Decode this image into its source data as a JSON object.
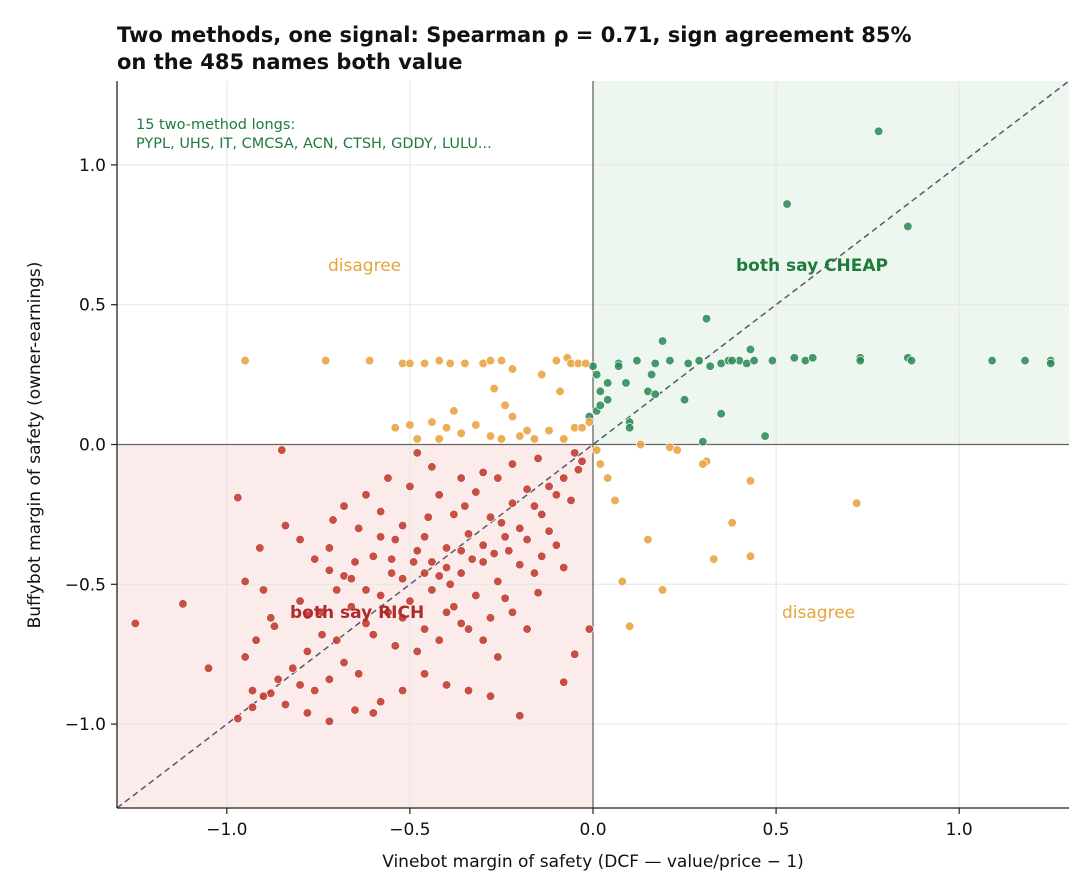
{
  "chart_data": {
    "type": "scatter",
    "title_lines": [
      "Two methods, one signal: Spearman ρ = 0.71, sign agreement 85%",
      "on the 485 names both value"
    ],
    "xlabel": "Vinebot margin of safety  (DCF — value/price − 1)",
    "ylabel": "Buffybot margin of safety  (owner-earnings)",
    "xlim": [
      -1.3,
      1.3
    ],
    "ylim": [
      -1.3,
      1.3
    ],
    "x_ticks": [
      -1.0,
      -0.5,
      0.0,
      0.5,
      1.0
    ],
    "x_tick_labels": [
      "−1.0",
      "−0.5",
      "0.0",
      "0.5",
      "1.0"
    ],
    "y_ticks": [
      -1.0,
      -0.5,
      0.0,
      0.5,
      1.0
    ],
    "y_tick_labels": [
      "−1.0",
      "−0.5",
      "0.0",
      "0.5",
      "1.0"
    ],
    "grid": true,
    "reference_line": "y = x (dashed)",
    "quadrant_labels": {
      "cheap": "both say CHEAP",
      "rich": "both say RICH",
      "disagree_top_left": "disagree",
      "disagree_bottom_right": "disagree"
    },
    "annotation": {
      "line1": "15 two-method longs:",
      "line2": "PYPL, UHS, IT, CMCSA, ACN, CTSH, GDDY, LULU..."
    },
    "colors": {
      "cheap": "#2e8b57",
      "rich": "#c0392b",
      "disagree": "#e8a33d",
      "cheap_region": "#edf7ef",
      "rich_region": "#fbebea",
      "cheap_label": "#1e7b3c",
      "rich_label": "#b02a2a",
      "annotation": "#1e7b3c",
      "reference_line": "#555b66"
    },
    "series": [
      {
        "category": "both say CHEAP",
        "points": [
          [
            0.78,
            1.12
          ],
          [
            0.53,
            0.86
          ],
          [
            0.86,
            0.78
          ],
          [
            0.31,
            0.45
          ],
          [
            0.19,
            0.37
          ],
          [
            0.43,
            0.34
          ],
          [
            0.0,
            0.28
          ],
          [
            0.07,
            0.29
          ],
          [
            0.07,
            0.28
          ],
          [
            0.12,
            0.3
          ],
          [
            0.17,
            0.29
          ],
          [
            0.21,
            0.3
          ],
          [
            0.26,
            0.29
          ],
          [
            0.29,
            0.3
          ],
          [
            0.32,
            0.28
          ],
          [
            0.35,
            0.29
          ],
          [
            0.37,
            0.3
          ],
          [
            0.4,
            0.3
          ],
          [
            0.42,
            0.29
          ],
          [
            0.44,
            0.3
          ],
          [
            0.49,
            0.3
          ],
          [
            0.55,
            0.31
          ],
          [
            0.58,
            0.3
          ],
          [
            0.6,
            0.31
          ],
          [
            0.73,
            0.31
          ],
          [
            0.73,
            0.3
          ],
          [
            0.86,
            0.31
          ],
          [
            0.87,
            0.3
          ],
          [
            1.09,
            0.3
          ],
          [
            1.18,
            0.3
          ],
          [
            1.25,
            0.3
          ],
          [
            1.25,
            0.29
          ],
          [
            0.01,
            0.25
          ],
          [
            0.04,
            0.22
          ],
          [
            0.09,
            0.22
          ],
          [
            0.02,
            0.19
          ],
          [
            0.15,
            0.19
          ],
          [
            0.17,
            0.18
          ],
          [
            0.04,
            0.16
          ],
          [
            0.25,
            0.16
          ],
          [
            0.01,
            0.12
          ],
          [
            -0.01,
            0.1
          ],
          [
            0.35,
            0.11
          ],
          [
            0.1,
            0.08
          ],
          [
            0.1,
            0.06
          ],
          [
            0.3,
            0.01
          ],
          [
            0.47,
            0.03
          ],
          [
            0.16,
            0.25
          ],
          [
            0.02,
            0.14
          ],
          [
            0.38,
            0.3
          ]
        ]
      },
      {
        "category": "disagree",
        "points": [
          [
            -0.95,
            0.3
          ],
          [
            -0.73,
            0.3
          ],
          [
            -0.61,
            0.3
          ],
          [
            -0.52,
            0.29
          ],
          [
            -0.5,
            0.29
          ],
          [
            -0.46,
            0.29
          ],
          [
            -0.42,
            0.3
          ],
          [
            -0.39,
            0.29
          ],
          [
            -0.35,
            0.29
          ],
          [
            -0.3,
            0.29
          ],
          [
            -0.28,
            0.3
          ],
          [
            -0.25,
            0.3
          ],
          [
            -0.22,
            0.27
          ],
          [
            -0.14,
            0.25
          ],
          [
            -0.1,
            0.3
          ],
          [
            -0.07,
            0.31
          ],
          [
            -0.06,
            0.29
          ],
          [
            -0.04,
            0.29
          ],
          [
            -0.02,
            0.29
          ],
          [
            -0.27,
            0.2
          ],
          [
            -0.09,
            0.19
          ],
          [
            -0.38,
            0.12
          ],
          [
            -0.24,
            0.14
          ],
          [
            -0.22,
            0.1
          ],
          [
            -0.5,
            0.07
          ],
          [
            -0.54,
            0.06
          ],
          [
            -0.44,
            0.08
          ],
          [
            -0.4,
            0.06
          ],
          [
            -0.36,
            0.04
          ],
          [
            -0.42,
            0.02
          ],
          [
            -0.48,
            0.02
          ],
          [
            -0.28,
            0.03
          ],
          [
            -0.25,
            0.02
          ],
          [
            -0.18,
            0.05
          ],
          [
            -0.12,
            0.05
          ],
          [
            -0.05,
            0.06
          ],
          [
            -0.03,
            0.06
          ],
          [
            -0.01,
            0.08
          ],
          [
            -0.2,
            0.03
          ],
          [
            -0.32,
            0.07
          ],
          [
            -0.16,
            0.02
          ],
          [
            -0.08,
            0.02
          ],
          [
            0.02,
            -0.07
          ],
          [
            0.04,
            -0.12
          ],
          [
            0.06,
            -0.2
          ],
          [
            0.13,
            0.0
          ],
          [
            0.21,
            -0.01
          ],
          [
            0.23,
            -0.02
          ],
          [
            0.31,
            -0.06
          ],
          [
            0.3,
            -0.07
          ],
          [
            0.43,
            -0.13
          ],
          [
            0.38,
            -0.28
          ],
          [
            0.72,
            -0.21
          ],
          [
            0.15,
            -0.34
          ],
          [
            0.43,
            -0.4
          ],
          [
            0.33,
            -0.41
          ],
          [
            0.08,
            -0.49
          ],
          [
            0.19,
            -0.52
          ],
          [
            0.1,
            -0.65
          ],
          [
            0.01,
            -0.02
          ]
        ]
      },
      {
        "category": "both say RICH",
        "points": [
          [
            -1.25,
            -0.64
          ],
          [
            -1.12,
            -0.57
          ],
          [
            -1.05,
            -0.8
          ],
          [
            -0.97,
            -0.19
          ],
          [
            -0.95,
            -0.49
          ],
          [
            -0.95,
            -0.76
          ],
          [
            -0.97,
            -0.98
          ],
          [
            -0.93,
            -0.94
          ],
          [
            -0.91,
            -0.37
          ],
          [
            -0.9,
            -0.52
          ],
          [
            -0.87,
            -0.65
          ],
          [
            -0.84,
            -0.29
          ],
          [
            -0.8,
            -0.34
          ],
          [
            -0.78,
            -0.61
          ],
          [
            -0.76,
            -0.41
          ],
          [
            -0.72,
            -0.37
          ],
          [
            -0.71,
            -0.27
          ],
          [
            -0.68,
            -0.47
          ],
          [
            -0.65,
            -0.42
          ],
          [
            -0.62,
            -0.52
          ],
          [
            -0.58,
            -0.33
          ],
          [
            -0.55,
            -0.41
          ],
          [
            -0.52,
            -0.48
          ],
          [
            -0.49,
            -0.42
          ],
          [
            -0.46,
            -0.46
          ],
          [
            -0.42,
            -0.47
          ],
          [
            -0.39,
            -0.5
          ],
          [
            -0.36,
            -0.46
          ],
          [
            -0.33,
            -0.41
          ],
          [
            -0.3,
            -0.42
          ],
          [
            -0.27,
            -0.39
          ],
          [
            -0.25,
            -0.28
          ],
          [
            -0.23,
            -0.38
          ],
          [
            -0.2,
            -0.3
          ],
          [
            -0.18,
            -0.34
          ],
          [
            -0.16,
            -0.22
          ],
          [
            -0.14,
            -0.25
          ],
          [
            -0.12,
            -0.15
          ],
          [
            -0.1,
            -0.18
          ],
          [
            -0.08,
            -0.12
          ],
          [
            -0.06,
            -0.2
          ],
          [
            -0.04,
            -0.09
          ],
          [
            -0.03,
            -0.06
          ],
          [
            -0.05,
            -0.03
          ],
          [
            -0.15,
            -0.05
          ],
          [
            -0.22,
            -0.07
          ],
          [
            -0.3,
            -0.1
          ],
          [
            -0.36,
            -0.12
          ],
          [
            -0.44,
            -0.08
          ],
          [
            -0.5,
            -0.15
          ],
          [
            -0.56,
            -0.12
          ],
          [
            -0.62,
            -0.18
          ],
          [
            -0.68,
            -0.22
          ],
          [
            -0.85,
            -0.02
          ],
          [
            -0.48,
            -0.03
          ],
          [
            -0.58,
            -0.24
          ],
          [
            -0.52,
            -0.29
          ],
          [
            -0.46,
            -0.33
          ],
          [
            -0.4,
            -0.37
          ],
          [
            -0.34,
            -0.32
          ],
          [
            -0.28,
            -0.26
          ],
          [
            -0.22,
            -0.21
          ],
          [
            -0.18,
            -0.16
          ],
          [
            -0.12,
            -0.31
          ],
          [
            -0.08,
            -0.44
          ],
          [
            -0.1,
            -0.36
          ],
          [
            -0.14,
            -0.4
          ],
          [
            -0.2,
            -0.43
          ],
          [
            -0.26,
            -0.49
          ],
          [
            -0.32,
            -0.54
          ],
          [
            -0.38,
            -0.58
          ],
          [
            -0.44,
            -0.52
          ],
          [
            -0.5,
            -0.56
          ],
          [
            -0.56,
            -0.6
          ],
          [
            -0.62,
            -0.64
          ],
          [
            -0.66,
            -0.58
          ],
          [
            -0.7,
            -0.7
          ],
          [
            -0.74,
            -0.68
          ],
          [
            -0.78,
            -0.74
          ],
          [
            -0.82,
            -0.8
          ],
          [
            -0.86,
            -0.84
          ],
          [
            -0.88,
            -0.89
          ],
          [
            -0.84,
            -0.93
          ],
          [
            -0.78,
            -0.96
          ],
          [
            -0.72,
            -0.99
          ],
          [
            -0.65,
            -0.95
          ],
          [
            -0.6,
            -0.96
          ],
          [
            -0.58,
            -0.92
          ],
          [
            -0.52,
            -0.88
          ],
          [
            -0.46,
            -0.82
          ],
          [
            -0.4,
            -0.86
          ],
          [
            -0.34,
            -0.88
          ],
          [
            -0.28,
            -0.9
          ],
          [
            -0.26,
            -0.76
          ],
          [
            -0.3,
            -0.7
          ],
          [
            -0.36,
            -0.64
          ],
          [
            -0.42,
            -0.7
          ],
          [
            -0.48,
            -0.74
          ],
          [
            -0.54,
            -0.72
          ],
          [
            -0.6,
            -0.68
          ],
          [
            -0.64,
            -0.82
          ],
          [
            -0.68,
            -0.78
          ],
          [
            -0.72,
            -0.84
          ],
          [
            -0.76,
            -0.88
          ],
          [
            -0.8,
            -0.86
          ],
          [
            -0.9,
            -0.9
          ],
          [
            -0.93,
            -0.88
          ],
          [
            -0.2,
            -0.97
          ],
          [
            -0.24,
            -0.55
          ],
          [
            -0.18,
            -0.66
          ],
          [
            -0.15,
            -0.53
          ],
          [
            -0.08,
            -0.85
          ],
          [
            -0.05,
            -0.75
          ],
          [
            -0.01,
            -0.66
          ],
          [
            -0.42,
            -0.18
          ],
          [
            -0.38,
            -0.25
          ],
          [
            -0.32,
            -0.17
          ],
          [
            -0.26,
            -0.12
          ],
          [
            -0.6,
            -0.4
          ],
          [
            -0.64,
            -0.3
          ],
          [
            -0.7,
            -0.52
          ],
          [
            -0.74,
            -0.6
          ],
          [
            -0.8,
            -0.56
          ],
          [
            -0.88,
            -0.62
          ],
          [
            -0.92,
            -0.7
          ],
          [
            -0.54,
            -0.34
          ],
          [
            -0.48,
            -0.38
          ],
          [
            -0.44,
            -0.42
          ],
          [
            -0.4,
            -0.44
          ],
          [
            -0.36,
            -0.38
          ],
          [
            -0.3,
            -0.36
          ],
          [
            -0.24,
            -0.33
          ],
          [
            -0.35,
            -0.22
          ],
          [
            -0.45,
            -0.26
          ],
          [
            -0.55,
            -0.46
          ],
          [
            -0.66,
            -0.48
          ],
          [
            -0.72,
            -0.45
          ],
          [
            -0.58,
            -0.54
          ],
          [
            -0.52,
            -0.62
          ],
          [
            -0.46,
            -0.66
          ],
          [
            -0.4,
            -0.6
          ],
          [
            -0.34,
            -0.66
          ],
          [
            -0.28,
            -0.62
          ],
          [
            -0.22,
            -0.6
          ],
          [
            -0.16,
            -0.46
          ]
        ]
      }
    ]
  }
}
